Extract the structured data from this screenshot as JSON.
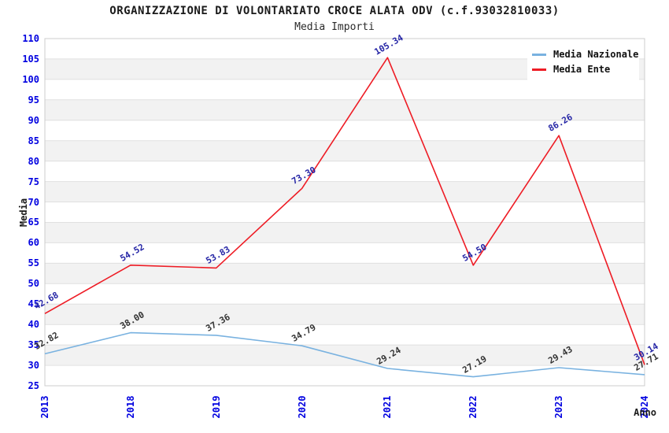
{
  "header": {
    "title": "ORGANIZZAZIONE DI VOLONTARIATO CROCE ALATA ODV (c.f.93032810033)",
    "subtitle": "Media Importi"
  },
  "chart_data": {
    "type": "line",
    "categories": [
      "2013",
      "2018",
      "2019",
      "2020",
      "2021",
      "2022",
      "2023",
      "2024"
    ],
    "series": [
      {
        "name": "Media Nazionale",
        "color": "#79b2e0",
        "label_color": "#333333",
        "values": [
          32.82,
          38.0,
          37.36,
          34.79,
          29.24,
          27.19,
          29.43,
          27.71
        ]
      },
      {
        "name": "Media Ente",
        "color": "#ee1c25",
        "label_color": "#2626a6",
        "values": [
          42.68,
          54.52,
          53.83,
          73.3,
          105.34,
          54.5,
          86.26,
          30.14
        ]
      }
    ],
    "xlabel": "Anno",
    "ylabel": "Media",
    "ylim": [
      25,
      110
    ],
    "ytick_step": 5,
    "label_decimals": 2,
    "legend_position": "top-right",
    "grid": true,
    "colors": {
      "tick_label": "#0000e0",
      "stripe": "#f2f2f2",
      "grid_line": "#e0e0e0",
      "plot_border": "#cccccc",
      "background": "#ffffff"
    }
  }
}
